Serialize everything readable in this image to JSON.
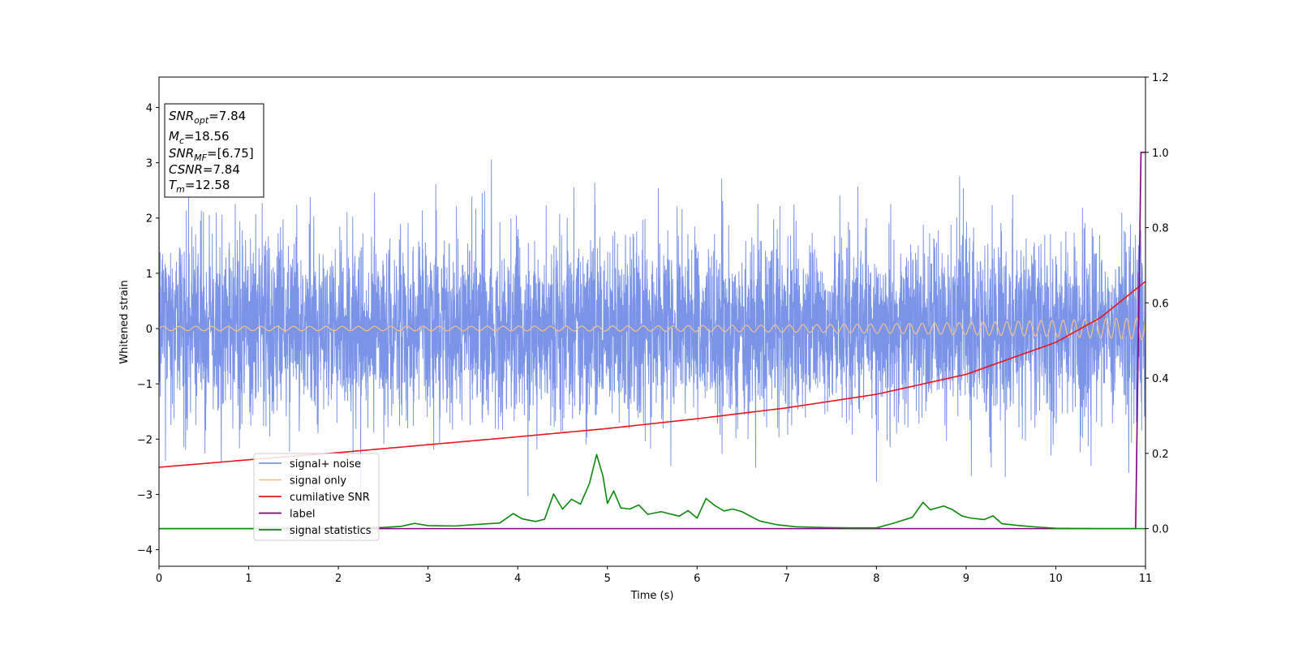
{
  "chart_data": {
    "type": "line",
    "xlabel": "Time (s)",
    "ylabel": "Whitened strain",
    "xlim": [
      0,
      11
    ],
    "ylim": [
      -4.3,
      4.55
    ],
    "y2lim": [
      -0.1,
      1.2
    ],
    "grid": false,
    "legend_position": "lower-left",
    "x_ticks": [
      "0",
      "1",
      "2",
      "3",
      "4",
      "5",
      "6",
      "7",
      "8",
      "9",
      "10",
      "11"
    ],
    "y_ticks": [
      "−4",
      "−3",
      "−2",
      "−1",
      "0",
      "1",
      "2",
      "3",
      "4"
    ],
    "y2_ticks": [
      "0.0",
      "0.2",
      "0.4",
      "0.6",
      "0.8",
      "1.0",
      "1.2"
    ],
    "annotation": {
      "snr_opt": {
        "base": "SNR",
        "sub": "opt",
        "value": "=7.84"
      },
      "mc": {
        "base": "M",
        "sub": "c",
        "value": "=18.56"
      },
      "snr_mf": {
        "base": "SNR",
        "sub": "MF",
        "value": "=[6.75]"
      },
      "csnr": {
        "base": "CSNR",
        "sub": "",
        "value": "=7.84"
      },
      "tm": {
        "base": "T",
        "sub": "m",
        "value": "=12.58"
      }
    },
    "series": [
      {
        "name": "signal+ noise",
        "color": "#7b94e8",
        "axis": "left",
        "kind": "noise",
        "sigma": 0.82
      },
      {
        "name": "signal only",
        "color": "#f5c38a",
        "axis": "left",
        "kind": "chirp",
        "amplitude_start": 0.04,
        "amplitude_end": 0.2
      },
      {
        "name": "cumilative SNR",
        "color": "#e8141e",
        "axis": "right",
        "x": [
          0,
          1,
          2,
          3,
          4,
          5,
          6,
          7,
          8,
          9,
          10,
          10.5,
          11
        ],
        "values": [
          0.163,
          0.183,
          0.202,
          0.223,
          0.244,
          0.266,
          0.292,
          0.321,
          0.357,
          0.41,
          0.495,
          0.561,
          0.657
        ]
      },
      {
        "name": "label",
        "color": "#800080",
        "axis": "right",
        "x": [
          0,
          10.89,
          10.95,
          11
        ],
        "values": [
          0,
          0,
          1,
          1
        ]
      },
      {
        "name": "signal statistics",
        "color": "#0a8a0a",
        "axis": "right",
        "x": [
          0,
          1,
          2,
          2.5,
          2.7,
          2.85,
          3,
          3.3,
          3.6,
          3.8,
          3.95,
          4.05,
          4.2,
          4.3,
          4.4,
          4.5,
          4.6,
          4.7,
          4.8,
          4.88,
          4.95,
          5.0,
          5.07,
          5.15,
          5.25,
          5.35,
          5.45,
          5.6,
          5.8,
          5.9,
          6.0,
          6.1,
          6.2,
          6.3,
          6.4,
          6.5,
          6.7,
          6.9,
          7.1,
          7.4,
          7.7,
          8.0,
          8.2,
          8.4,
          8.52,
          8.6,
          8.75,
          8.85,
          8.95,
          9.05,
          9.2,
          9.3,
          9.4,
          9.6,
          9.8,
          10.0,
          10.5,
          11
        ],
        "values": [
          0,
          0,
          0.002,
          0.003,
          0.006,
          0.014,
          0.008,
          0.007,
          0.012,
          0.015,
          0.04,
          0.026,
          0.019,
          0.025,
          0.092,
          0.052,
          0.078,
          0.065,
          0.12,
          0.197,
          0.14,
          0.067,
          0.1,
          0.055,
          0.052,
          0.063,
          0.038,
          0.045,
          0.033,
          0.048,
          0.028,
          0.08,
          0.061,
          0.047,
          0.052,
          0.045,
          0.02,
          0.01,
          0.005,
          0.003,
          0.002,
          0.002,
          0.015,
          0.03,
          0.07,
          0.05,
          0.06,
          0.05,
          0.034,
          0.028,
          0.024,
          0.034,
          0.013,
          0.008,
          0.004,
          0.001,
          0,
          0
        ]
      }
    ]
  }
}
